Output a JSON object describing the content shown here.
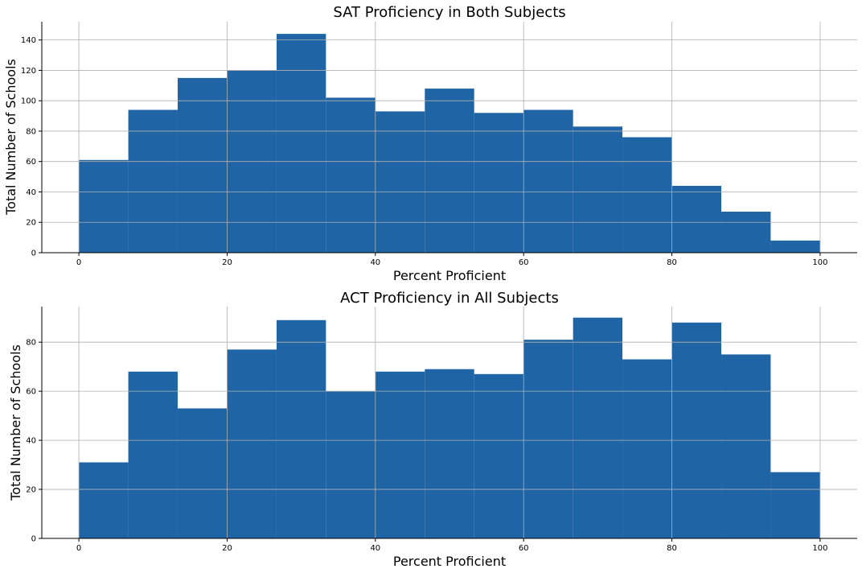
{
  "colors": {
    "bar": "#1f65a6",
    "grid": "#b0b0b0",
    "axis": "#000000"
  },
  "chart_data": [
    {
      "type": "bar",
      "title": "SAT Proficiency in Both Subjects",
      "xlabel": "Percent Proficient",
      "ylabel": "Total Number of Schools",
      "bin_edges": [
        0,
        6.67,
        13.33,
        20,
        26.67,
        33.33,
        40,
        46.67,
        53.33,
        60,
        66.67,
        73.33,
        80,
        86.67,
        93.33,
        100
      ],
      "values": [
        61,
        94,
        115,
        120,
        144,
        102,
        93,
        108,
        92,
        94,
        83,
        76,
        44,
        27,
        8
      ],
      "xlim": [
        -5,
        105
      ],
      "ylim": [
        0,
        152
      ],
      "xticks": [
        0,
        20,
        40,
        60,
        80,
        100
      ],
      "xtick_labels": [
        "0",
        "20",
        "40",
        "60",
        "80",
        "100"
      ],
      "yticks": [
        0,
        20,
        40,
        60,
        80,
        100,
        120,
        140
      ],
      "ytick_labels": [
        "0",
        "20",
        "40",
        "60",
        "80",
        "100",
        "120",
        "140"
      ],
      "grid": true
    },
    {
      "type": "bar",
      "title": "ACT Proficiency in All Subjects",
      "xlabel": "Percent Proficient",
      "ylabel": "Total Number of Schools",
      "bin_edges": [
        0,
        6.67,
        13.33,
        20,
        26.67,
        33.33,
        40,
        46.67,
        53.33,
        60,
        66.67,
        73.33,
        80,
        86.67,
        93.33,
        100
      ],
      "values": [
        31,
        68,
        53,
        77,
        89,
        60,
        68,
        69,
        67,
        81,
        90,
        73,
        88,
        75,
        27
      ],
      "xlim": [
        -5,
        105
      ],
      "ylim": [
        0,
        94.5
      ],
      "xticks": [
        0,
        20,
        40,
        60,
        80,
        100
      ],
      "xtick_labels": [
        "0",
        "20",
        "40",
        "60",
        "80",
        "100"
      ],
      "yticks": [
        0,
        20,
        40,
        60,
        80
      ],
      "ytick_labels": [
        "0",
        "20",
        "40",
        "60",
        "80"
      ],
      "grid": true
    }
  ]
}
